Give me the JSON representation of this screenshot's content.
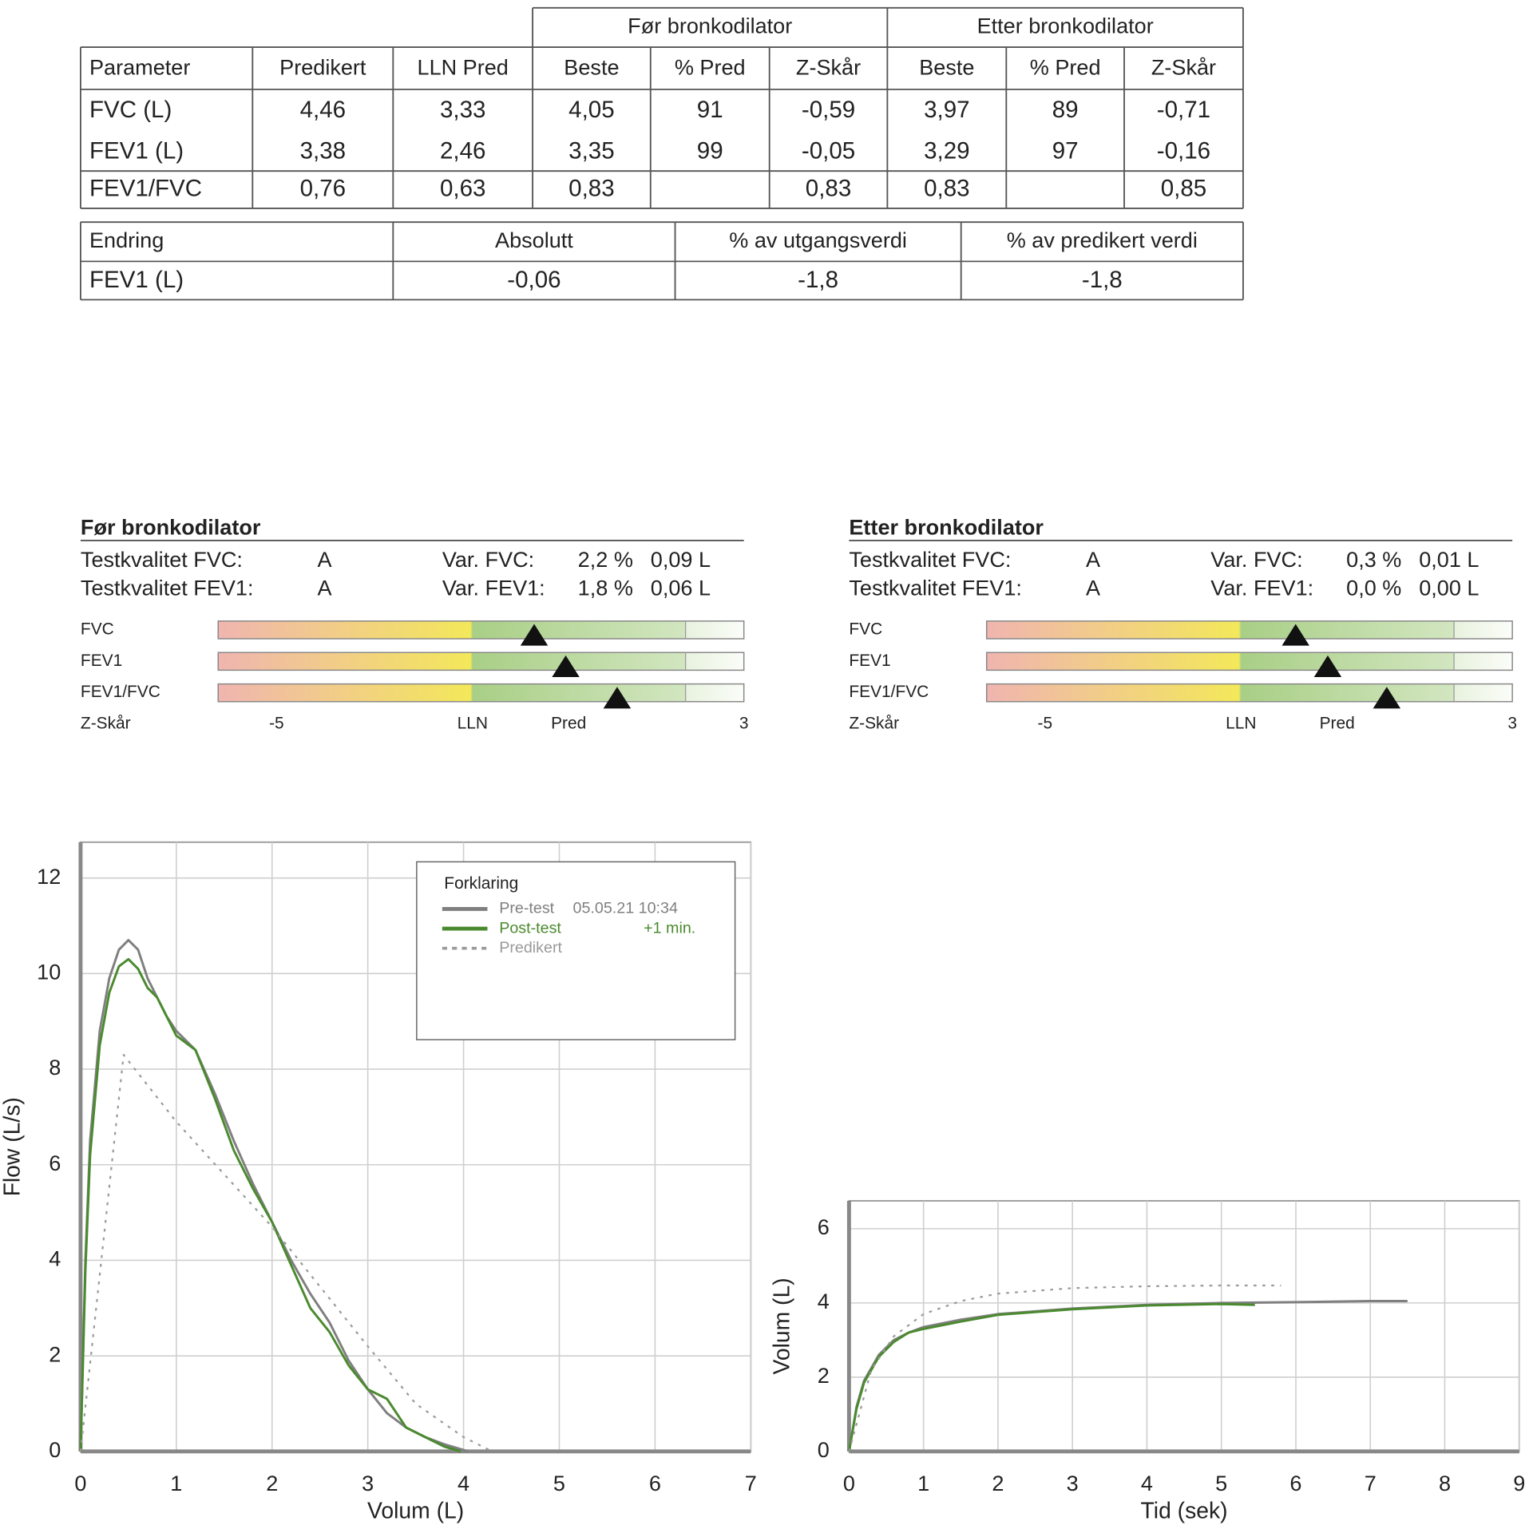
{
  "table": {
    "group_headers": [
      "Før bronkodilator",
      "Etter bronkodilator"
    ],
    "header": [
      "Parameter",
      "Predikert",
      "LLN Pred",
      "Beste",
      "% Pred",
      "Z-Skår",
      "Beste",
      "% Pred",
      "Z-Skår"
    ],
    "rows": [
      [
        "FVC (L)",
        "4,46",
        "3,33",
        "4,05",
        "91",
        "-0,59",
        "3,97",
        "89",
        "-0,71"
      ],
      [
        "FEV1 (L)",
        "3,38",
        "2,46",
        "3,35",
        "99",
        "-0,05",
        "3,29",
        "97",
        "-0,16"
      ],
      [
        "FEV1/FVC",
        "0,76",
        "0,63",
        "0,83",
        null,
        "0,83",
        "0,83",
        null,
        "0,85"
      ]
    ]
  },
  "change_table": {
    "header": [
      "Endring",
      "Absolutt",
      "% av utgangsverdi",
      "% av predikert verdi"
    ],
    "rows": [
      [
        "FEV1 (L)",
        "-0,06",
        "-1,8",
        "-1,8"
      ]
    ]
  },
  "panels": [
    {
      "title": "Før bronkodilator",
      "rows": [
        [
          "Testkvalitet FVC:",
          "A",
          "Var. FVC:",
          "2,2 %",
          "0,09 L"
        ],
        [
          "Testkvalitet FEV1:",
          "A",
          "Var. FEV1:",
          "1,8 %",
          "0,06 L"
        ]
      ],
      "bars": [
        {
          "label": "FVC",
          "z": -0.59
        },
        {
          "label": "FEV1",
          "z": -0.05
        },
        {
          "label": "FEV1/FVC",
          "z": 0.83
        }
      ],
      "axis_label": "Z-Skår",
      "zlim": [
        -6,
        3
      ],
      "zticks": [
        -5,
        {
          "value": -1.645,
          "label": "LLN"
        },
        {
          "value": 0,
          "label": "Pred"
        },
        3
      ]
    },
    {
      "title": "Etter bronkodilator",
      "rows": [
        [
          "Testkvalitet FVC:",
          "A",
          "Var. FVC:",
          "0,3 %",
          "0,01 L"
        ],
        [
          "Testkvalitet FEV1:",
          "A",
          "Var. FEV1:",
          "0,0 %",
          "0,00 L"
        ]
      ],
      "bars": [
        {
          "label": "FVC",
          "z": -0.71
        },
        {
          "label": "FEV1",
          "z": -0.16
        },
        {
          "label": "FEV1/FVC",
          "z": 0.85
        }
      ],
      "axis_label": "Z-Skår",
      "zlim": [
        -6,
        3
      ],
      "zticks": [
        -5,
        {
          "value": -1.645,
          "label": "LLN"
        },
        {
          "value": 0,
          "label": "Pred"
        },
        3
      ]
    }
  ],
  "charts": [
    {
      "type": "line",
      "xlabel": "Volum (L)",
      "ylabel": "Flow (L/s)",
      "xlim": [
        0,
        7
      ],
      "ylim": [
        0,
        12.75
      ],
      "xticks": [
        0,
        1,
        2,
        3,
        4,
        5,
        6,
        7
      ],
      "yticks": [
        0,
        2,
        4,
        6,
        8,
        10,
        12
      ],
      "grid": true,
      "legend": "upper right",
      "legend_title": "Forklaring",
      "series": [
        {
          "name": "Pre-test",
          "note": "05.05.21 10:34",
          "color": "#7f7f7f",
          "dash": "solid",
          "x": [
            0,
            0.05,
            0.1,
            0.2,
            0.3,
            0.4,
            0.5,
            0.6,
            0.7,
            0.8,
            0.9,
            1.0,
            1.2,
            1.4,
            1.6,
            1.8,
            2.0,
            2.2,
            2.4,
            2.6,
            2.8,
            3.0,
            3.2,
            3.4,
            3.6,
            3.8,
            4.05
          ],
          "values": [
            0,
            4,
            6.5,
            8.8,
            9.9,
            10.5,
            10.7,
            10.5,
            9.9,
            9.5,
            9.1,
            8.8,
            8.4,
            7.5,
            6.5,
            5.6,
            4.8,
            4.0,
            3.3,
            2.7,
            1.9,
            1.3,
            0.8,
            0.5,
            0.3,
            0.15,
            0
          ]
        },
        {
          "name": "Post-test",
          "note": "+1 min.",
          "color": "#4a8a2e",
          "dash": "solid",
          "x": [
            0,
            0.05,
            0.1,
            0.2,
            0.3,
            0.4,
            0.5,
            0.6,
            0.7,
            0.8,
            0.9,
            1.0,
            1.2,
            1.4,
            1.6,
            1.8,
            2.0,
            2.2,
            2.4,
            2.6,
            2.8,
            3.0,
            3.2,
            3.4,
            3.6,
            3.8,
            3.97
          ],
          "values": [
            0,
            3.8,
            6.2,
            8.5,
            9.6,
            10.15,
            10.3,
            10.1,
            9.7,
            9.5,
            9.1,
            8.7,
            8.4,
            7.4,
            6.3,
            5.5,
            4.8,
            3.9,
            3.0,
            2.5,
            1.8,
            1.3,
            1.1,
            0.5,
            0.3,
            0.1,
            0
          ]
        },
        {
          "name": "Predikert",
          "color": "#9a9a9a",
          "dash": "dotted",
          "x": [
            0,
            0.45,
            1,
            2,
            3,
            3.5,
            4,
            4.3
          ],
          "values": [
            0,
            8.3,
            6.9,
            4.7,
            2.2,
            1.0,
            0.3,
            0
          ]
        }
      ]
    },
    {
      "type": "line",
      "xlabel": "Tid (sek)",
      "ylabel": "Volum (L)",
      "xlim": [
        0,
        9
      ],
      "ylim": [
        0,
        6.75
      ],
      "xticks": [
        0,
        1,
        2,
        3,
        4,
        5,
        6,
        7,
        8,
        9
      ],
      "yticks": [
        0,
        2,
        4,
        6
      ],
      "grid": true,
      "series": [
        {
          "color": "#7f7f7f",
          "dash": "solid",
          "x": [
            0,
            0.1,
            0.2,
            0.4,
            0.6,
            0.8,
            1,
            1.5,
            2,
            3,
            4,
            5,
            6,
            7,
            7.5
          ],
          "values": [
            0,
            1.2,
            1.9,
            2.6,
            3.0,
            3.2,
            3.35,
            3.55,
            3.7,
            3.85,
            3.95,
            4.0,
            4.02,
            4.05,
            4.05
          ]
        },
        {
          "color": "#4a8a2e",
          "dash": "solid",
          "x": [
            0,
            0.1,
            0.2,
            0.4,
            0.6,
            0.8,
            1,
            1.5,
            2,
            3,
            4,
            5,
            5.45
          ],
          "values": [
            0,
            1.15,
            1.85,
            2.55,
            2.95,
            3.2,
            3.3,
            3.5,
            3.68,
            3.83,
            3.93,
            3.97,
            3.95
          ]
        },
        {
          "color": "#9a9a9a",
          "dash": "dotted",
          "x": [
            0,
            0.3,
            0.6,
            1,
            1.5,
            2,
            3,
            4,
            5,
            5.8
          ],
          "values": [
            0,
            2.2,
            3.1,
            3.7,
            4.05,
            4.25,
            4.4,
            4.45,
            4.47,
            4.47
          ]
        }
      ]
    }
  ]
}
